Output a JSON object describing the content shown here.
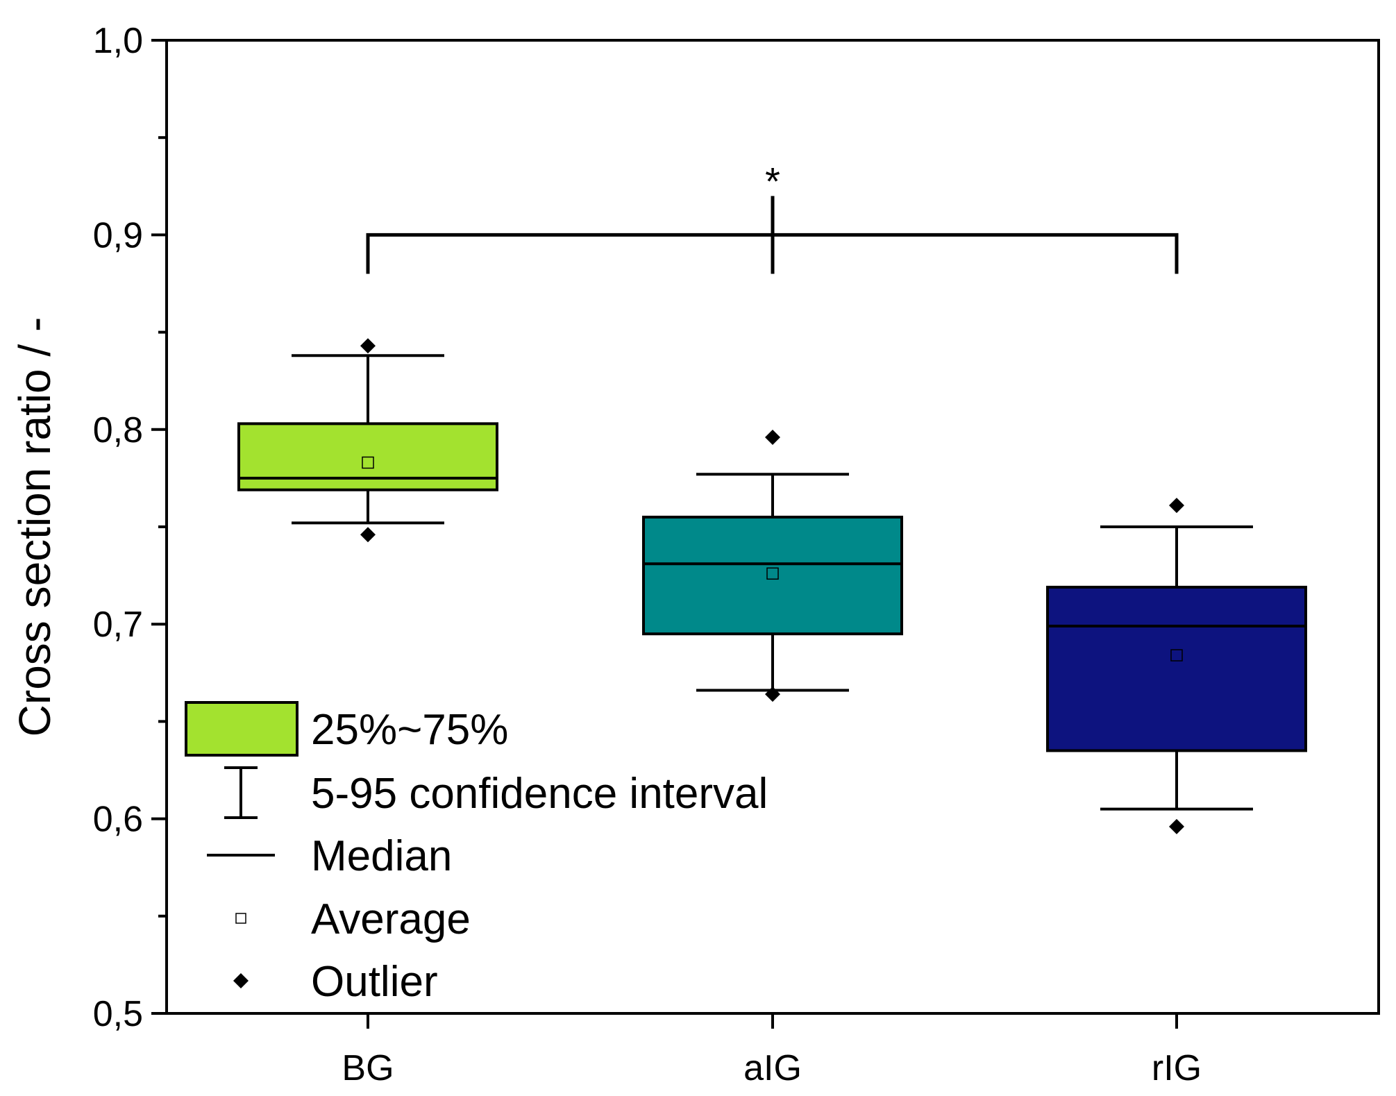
{
  "chart_data": {
    "type": "box",
    "title": "",
    "xlabel": "",
    "ylabel": "Cross section ratio / -",
    "ylim": [
      0.5,
      1.0
    ],
    "y_ticks": [
      {
        "value": 0.5,
        "label": "0,5"
      },
      {
        "value": 0.6,
        "label": "0,6"
      },
      {
        "value": 0.7,
        "label": "0,7"
      },
      {
        "value": 0.8,
        "label": "0,8"
      },
      {
        "value": 0.9,
        "label": "0,9"
      },
      {
        "value": 1.0,
        "label": "1,0"
      }
    ],
    "y_minor_ticks": [
      0.55,
      0.65,
      0.75,
      0.85,
      0.95
    ],
    "categories": [
      "BG",
      "aIG",
      "rIG"
    ],
    "boxes": [
      {
        "category": "BG",
        "color": "#a3e22f",
        "q1": 0.769,
        "q3": 0.803,
        "median": 0.775,
        "mean": 0.783,
        "whisker_low": 0.752,
        "whisker_high": 0.838,
        "outliers": [
          0.843,
          0.746
        ]
      },
      {
        "category": "aIG",
        "color": "#00898a",
        "q1": 0.695,
        "q3": 0.755,
        "median": 0.731,
        "mean": 0.726,
        "whisker_low": 0.666,
        "whisker_high": 0.777,
        "outliers": [
          0.796,
          0.664
        ]
      },
      {
        "category": "rIG",
        "color": "#0d137f",
        "q1": 0.635,
        "q3": 0.719,
        "median": 0.699,
        "mean": 0.684,
        "whisker_low": 0.605,
        "whisker_high": 0.75,
        "outliers": [
          0.761,
          0.596
        ]
      }
    ],
    "significance": {
      "from": "BG",
      "to": "rIG",
      "center": "aIG",
      "level": 0.9,
      "drop_to": 0.88,
      "stem_top": 0.92,
      "label": "*"
    },
    "legend": {
      "position": "bottom-left",
      "items": [
        {
          "symbol": "box",
          "label": "25%~75%",
          "color": "#a3e22f"
        },
        {
          "symbol": "whisker",
          "label": "5-95  confidence interval"
        },
        {
          "symbol": "line",
          "label": "Median"
        },
        {
          "symbol": "open-square",
          "label": "Average"
        },
        {
          "symbol": "diamond",
          "label": "Outlier"
        }
      ]
    }
  }
}
